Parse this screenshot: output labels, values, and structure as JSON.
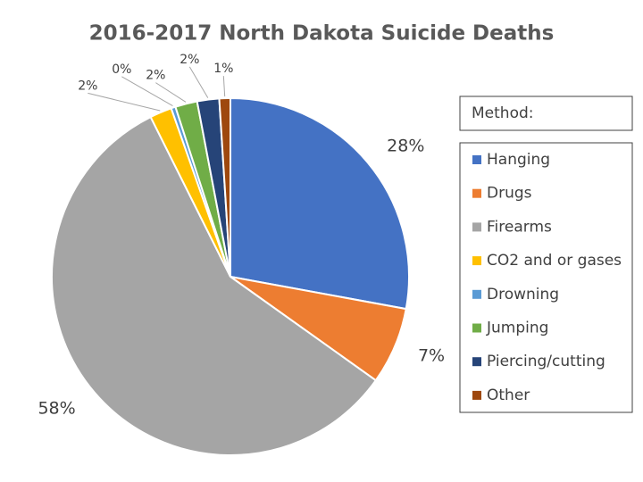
{
  "chart_data": {
    "type": "pie",
    "title": "2016-2017 North Dakota Suicide Deaths",
    "legend_title": "Method:",
    "categories": [
      "Hanging",
      "Drugs",
      "Firearms",
      "CO2 and or gases",
      "Drowning",
      "Jumping",
      "Piercing/cutting",
      "Other"
    ],
    "values": [
      28,
      7,
      58,
      2,
      0.4,
      2,
      2,
      1
    ],
    "value_labels": [
      "28%",
      "7%",
      "58%",
      "2%",
      "0%",
      "2%",
      "2%",
      "1%"
    ],
    "colors": [
      "#4472c4",
      "#ed7d31",
      "#a5a5a5",
      "#ffc000",
      "#5b9bd5",
      "#70ad47",
      "#264478",
      "#9e480e"
    ],
    "legend": "right"
  }
}
